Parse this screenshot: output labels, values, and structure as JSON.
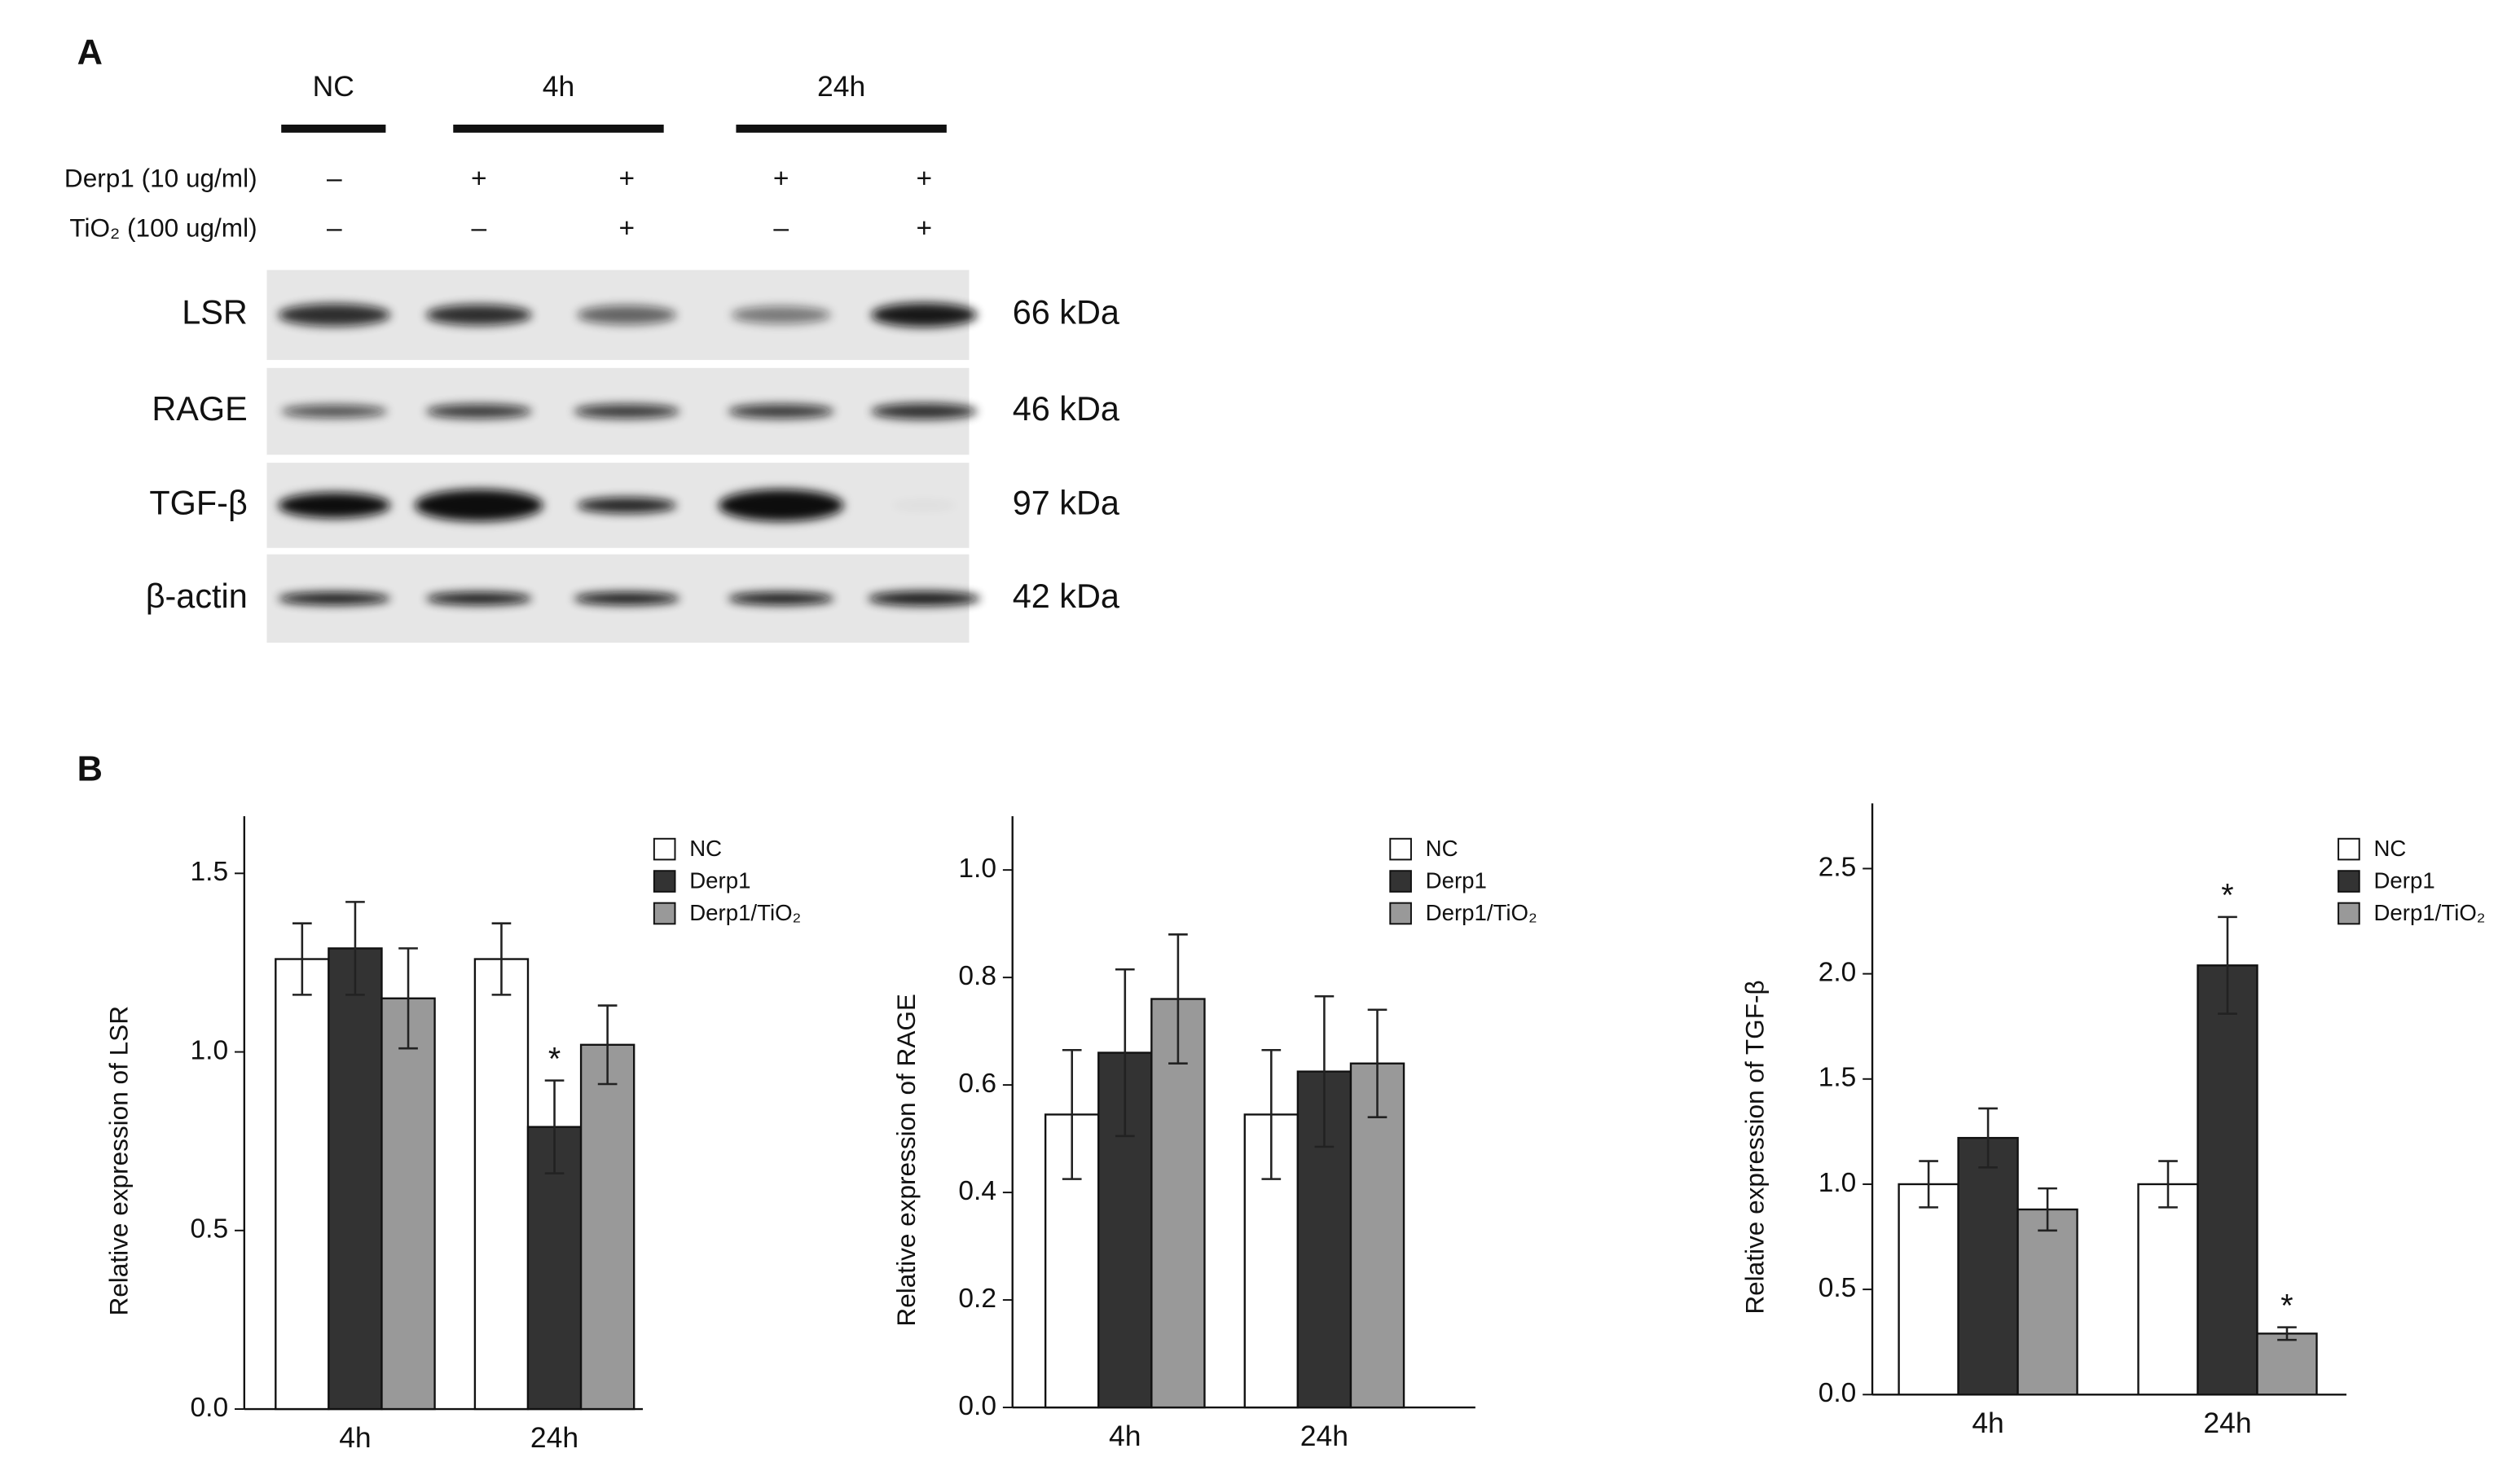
{
  "panel_a": {
    "label": "A",
    "groups": [
      "NC",
      "4h",
      "24h"
    ],
    "treatments": [
      {
        "name": "Derp1 (10 ug/ml)",
        "signs": [
          "–",
          "+",
          "+",
          "+",
          "+"
        ]
      },
      {
        "name": "TiO₂ (100 ug/ml)",
        "signs": [
          "–",
          "–",
          "+",
          "–",
          "+"
        ]
      }
    ],
    "blots": [
      {
        "protein": "LSR",
        "size": "66 kDa"
      },
      {
        "protein": "RAGE",
        "size": "46 kDa"
      },
      {
        "protein": "TGF-β",
        "size": "97 kDa"
      },
      {
        "protein": "β-actin",
        "size": "42 kDa"
      }
    ]
  },
  "panel_b_label": "B",
  "chart_data": [
    {
      "type": "bar",
      "ylabel": "Relative expression of LSR",
      "categories": [
        "4h",
        "24h"
      ],
      "ylim": [
        0,
        1.66
      ],
      "yticks": [
        {
          "value": 0,
          "label": "0.0"
        },
        0.5,
        {
          "value": 1,
          "label": "1.0"
        },
        1.5
      ],
      "series": [
        {
          "name": "NC",
          "color": "#ffffff",
          "values": [
            1.26,
            1.26
          ],
          "errors": [
            0.1,
            0.1
          ]
        },
        {
          "name": "Derp1",
          "color": "#333333",
          "values": [
            1.29,
            0.79
          ],
          "errors": [
            0.13,
            0.13
          ],
          "annotations": [
            null,
            "*"
          ]
        },
        {
          "name": "Derp1/TiO₂",
          "color": "#999999",
          "values": [
            1.15,
            1.02
          ],
          "errors": [
            0.14,
            0.11
          ]
        }
      ]
    },
    {
      "type": "bar",
      "ylabel": "Relative expression of RAGE",
      "categories": [
        "4h",
        "24h"
      ],
      "ylim": [
        0,
        1.1
      ],
      "yticks": [
        {
          "value": 0,
          "label": "0.0"
        },
        0.2,
        0.4,
        0.6,
        0.8,
        {
          "value": 1,
          "label": "1.0"
        }
      ],
      "series": [
        {
          "name": "NC",
          "color": "#ffffff",
          "values": [
            0.545,
            0.545
          ],
          "errors": [
            0.12,
            0.12
          ]
        },
        {
          "name": "Derp1",
          "color": "#333333",
          "values": [
            0.66,
            0.625
          ],
          "errors": [
            0.155,
            0.14
          ]
        },
        {
          "name": "Derp1/TiO₂",
          "color": "#999999",
          "values": [
            0.76,
            0.64
          ],
          "errors": [
            0.12,
            0.1
          ]
        }
      ]
    },
    {
      "type": "bar",
      "ylabel": "Relative expression of TGF-β",
      "categories": [
        "4h",
        "24h"
      ],
      "ylim": [
        0,
        2.81
      ],
      "yticks": [
        {
          "value": 0,
          "label": "0.0"
        },
        0.5,
        {
          "value": 1,
          "label": "1.0"
        },
        1.5,
        {
          "value": 2,
          "label": "2.0"
        },
        2.5
      ],
      "series": [
        {
          "name": "NC",
          "color": "#ffffff",
          "values": [
            1,
            1
          ],
          "errors": [
            0.11,
            0.11
          ]
        },
        {
          "name": "Derp1",
          "color": "#333333",
          "values": [
            1.22,
            2.04
          ],
          "errors": [
            0.14,
            0.23
          ],
          "annotations": [
            null,
            "*"
          ]
        },
        {
          "name": "Derp1/TiO₂",
          "color": "#999999",
          "values": [
            0.88,
            0.29
          ],
          "errors": [
            0.1,
            0.03
          ],
          "annotations": [
            null,
            "*"
          ]
        }
      ]
    }
  ]
}
